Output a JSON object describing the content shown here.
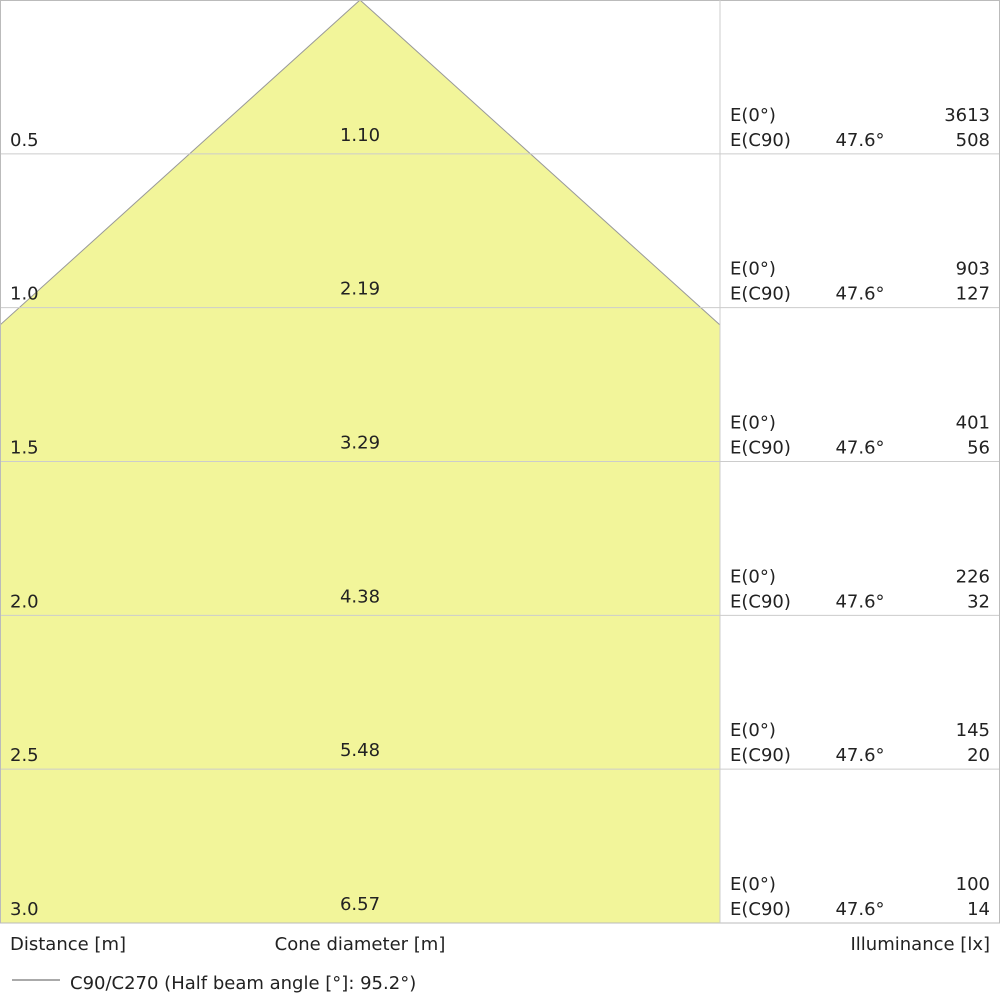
{
  "rows": [
    {
      "distance": "0.5",
      "diameter": "1.10",
      "e0_label": "E(0°)",
      "e0": "3613",
      "c90_label": "E(C90)",
      "angle": "47.6°",
      "c90": "508"
    },
    {
      "distance": "1.0",
      "diameter": "2.19",
      "e0_label": "E(0°)",
      "e0": "903",
      "c90_label": "E(C90)",
      "angle": "47.6°",
      "c90": "127"
    },
    {
      "distance": "1.5",
      "diameter": "3.29",
      "e0_label": "E(0°)",
      "e0": "401",
      "c90_label": "E(C90)",
      "angle": "47.6°",
      "c90": "56"
    },
    {
      "distance": "2.0",
      "diameter": "4.38",
      "e0_label": "E(0°)",
      "e0": "226",
      "c90_label": "E(C90)",
      "angle": "47.6°",
      "c90": "32"
    },
    {
      "distance": "2.5",
      "diameter": "5.48",
      "e0_label": "E(0°)",
      "e0": "145",
      "c90_label": "E(C90)",
      "angle": "47.6°",
      "c90": "20"
    },
    {
      "distance": "3.0",
      "diameter": "6.57",
      "e0_label": "E(0°)",
      "e0": "100",
      "c90_label": "E(C90)",
      "angle": "47.6°",
      "c90": "14"
    }
  ],
  "footer": {
    "distance_label": "Distance [m]",
    "diameter_label": "Cone diameter [m]",
    "illuminance_label": "Illuminance [lx]"
  },
  "legend": {
    "label": "C90/C270 (Half beam angle [°]: 95.2°)"
  }
}
